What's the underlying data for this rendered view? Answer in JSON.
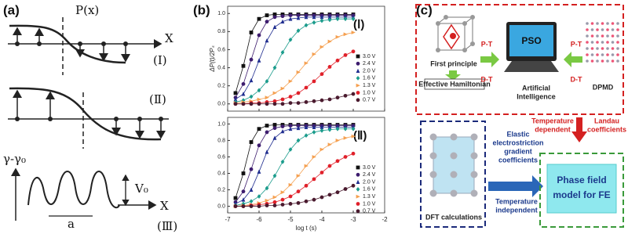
{
  "panel_a": {
    "label": "(a)",
    "px_label": "P(x)",
    "x_axis_1": "X",
    "row_1": "(Ⅰ)",
    "row_2": "(Ⅱ)",
    "gamma_label": "γ-γ₀",
    "v0_label": "V₀",
    "period_label": "a",
    "x_axis_3": "X",
    "row_3": "(Ⅲ)"
  },
  "panel_b": {
    "label": "(b)"
  },
  "chart_data": [
    {
      "type": "scatter",
      "annotation": "(Ⅰ)",
      "ylabel": "ΔP(t)/2Pₛ",
      "show_x_tick_labels": false,
      "x": [
        -6.75,
        -6.5,
        -6.25,
        -6.0,
        -5.75,
        -5.5,
        -5.25,
        -5.0,
        -4.75,
        -4.5,
        -4.25,
        -4.0,
        -3.75,
        -3.5,
        -3.25,
        -3.0
      ],
      "xlim": [
        -7,
        -2
      ],
      "xticks": [
        -7,
        -6,
        -5,
        -4,
        -3,
        -2
      ],
      "ylim": [
        -0.08,
        1.08
      ],
      "yticks": [
        {
          "value": 0,
          "label": "0.0"
        },
        0.2,
        0.4,
        0.6,
        0.8,
        {
          "value": 1,
          "label": "1.0"
        }
      ],
      "series": [
        {
          "name": "3.0 V",
          "color": "#111111",
          "marker": "square",
          "values": [
            0.12,
            0.42,
            0.79,
            0.94,
            0.98,
            0.99,
            0.99,
            0.99,
            0.99,
            0.99,
            0.99,
            0.99,
            0.99,
            0.99,
            0.99,
            0.99
          ]
        },
        {
          "name": "2.4 V",
          "color": "#3d1c6e",
          "marker": "circle",
          "values": [
            0.07,
            0.22,
            0.49,
            0.76,
            0.91,
            0.96,
            0.97,
            0.98,
            0.98,
            0.98,
            0.98,
            0.98,
            0.98,
            0.98,
            0.98,
            0.98
          ]
        },
        {
          "name": "2.0 V",
          "color": "#1f2d8f",
          "marker": "triangle",
          "values": [
            0.05,
            0.11,
            0.26,
            0.48,
            0.7,
            0.85,
            0.91,
            0.94,
            0.95,
            0.96,
            0.96,
            0.96,
            0.96,
            0.96,
            0.96,
            0.96
          ]
        },
        {
          "name": "1.6 V",
          "color": "#1b9c8c",
          "marker": "diamond",
          "values": [
            0.02,
            0.04,
            0.08,
            0.15,
            0.25,
            0.4,
            0.57,
            0.71,
            0.81,
            0.87,
            0.9,
            0.92,
            0.93,
            0.94,
            0.94,
            0.94
          ]
        },
        {
          "name": "1.3 V",
          "color": "#f5a050",
          "marker": "triangle-right",
          "values": [
            0.01,
            0.02,
            0.03,
            0.05,
            0.07,
            0.12,
            0.17,
            0.25,
            0.35,
            0.45,
            0.55,
            0.63,
            0.69,
            0.74,
            0.77,
            0.79
          ]
        },
        {
          "name": "1.0 V",
          "color": "#e0202a",
          "marker": "circle",
          "values": [
            0,
            0,
            0.01,
            0.01,
            0.02,
            0.03,
            0.05,
            0.08,
            0.12,
            0.18,
            0.25,
            0.33,
            0.41,
            0.48,
            0.54,
            0.58
          ]
        },
        {
          "name": "0.7 V",
          "color": "#4a1a2e",
          "marker": "circle",
          "values": [
            0,
            0,
            0,
            0,
            0,
            0,
            0,
            0.01,
            0.01,
            0.02,
            0.03,
            0.04,
            0.05,
            0.07,
            0.09,
            0.11
          ]
        }
      ]
    },
    {
      "type": "scatter",
      "annotation": "(Ⅱ)",
      "xlabel": "log t (s)",
      "show_x_tick_labels": true,
      "x": [
        -6.75,
        -6.5,
        -6.25,
        -6.0,
        -5.75,
        -5.5,
        -5.25,
        -5.0,
        -4.75,
        -4.5,
        -4.25,
        -4.0,
        -3.75,
        -3.5,
        -3.25,
        -3.0
      ],
      "xlim": [
        -7,
        -2
      ],
      "xticks": [
        -7,
        -6,
        -5,
        -4,
        -3,
        -2
      ],
      "ylim": [
        -0.08,
        1.08
      ],
      "yticks": [
        {
          "value": 0,
          "label": "0.0"
        },
        0.2,
        0.4,
        0.6,
        0.8,
        {
          "value": 1,
          "label": "1.0"
        }
      ],
      "series": [
        {
          "name": "3.0 V",
          "color": "#111111",
          "marker": "square",
          "values": [
            0.1,
            0.4,
            0.78,
            0.94,
            0.98,
            0.99,
            0.99,
            0.99,
            0.99,
            0.99,
            0.99,
            0.99,
            0.99,
            0.99,
            0.99,
            0.99
          ]
        },
        {
          "name": "2.4 V",
          "color": "#3d1c6e",
          "marker": "circle",
          "values": [
            0.05,
            0.18,
            0.45,
            0.74,
            0.9,
            0.95,
            0.97,
            0.98,
            0.98,
            0.98,
            0.98,
            0.98,
            0.98,
            0.98,
            0.98,
            0.98
          ]
        },
        {
          "name": "2.0 V",
          "color": "#1f2d8f",
          "marker": "triangle",
          "values": [
            0.03,
            0.08,
            0.2,
            0.42,
            0.66,
            0.83,
            0.91,
            0.94,
            0.95,
            0.96,
            0.96,
            0.96,
            0.96,
            0.96,
            0.96,
            0.96
          ]
        },
        {
          "name": "1.6 V",
          "color": "#1b9c8c",
          "marker": "diamond",
          "values": [
            0.01,
            0.03,
            0.06,
            0.12,
            0.22,
            0.37,
            0.54,
            0.69,
            0.8,
            0.86,
            0.9,
            0.92,
            0.93,
            0.94,
            0.94,
            0.94
          ]
        },
        {
          "name": "1.3 V",
          "color": "#f5a050",
          "marker": "triangle-right",
          "values": [
            0,
            0.01,
            0.02,
            0.04,
            0.07,
            0.11,
            0.17,
            0.26,
            0.37,
            0.49,
            0.6,
            0.69,
            0.75,
            0.8,
            0.83,
            0.85
          ]
        },
        {
          "name": "1.0 V",
          "color": "#e0202a",
          "marker": "circle",
          "values": [
            0,
            0,
            0.01,
            0.02,
            0.03,
            0.05,
            0.08,
            0.12,
            0.18,
            0.25,
            0.33,
            0.41,
            0.49,
            0.55,
            0.6,
            0.64
          ]
        },
        {
          "name": "0.7 V",
          "color": "#4a1a2e",
          "marker": "circle",
          "values": [
            0,
            0,
            0,
            0,
            0.01,
            0.01,
            0.02,
            0.03,
            0.04,
            0.06,
            0.08,
            0.11,
            0.14,
            0.17,
            0.21,
            0.25
          ]
        }
      ]
    }
  ],
  "panel_c": {
    "label": "(c)",
    "first_principle": "First principle",
    "effective_hamiltonian": "Effective Hamiltonian",
    "pt_left": "P-T",
    "dt_left": "D-T",
    "pso": "PSO",
    "artificial_intelligence": [
      "Artificial",
      "Intelligence"
    ],
    "pt_right": "P-T",
    "dt_right": "D-T",
    "dpmd": "DPMD",
    "temperature_dependent": [
      "Temperature",
      "dependent"
    ],
    "landau_coefficients": [
      "Landau",
      "coefficients"
    ],
    "elastic_coefficients": [
      "Elastic",
      "electrostriction",
      "gradient",
      "coefficients"
    ],
    "temperature_independent": [
      "Temperature",
      "independent"
    ],
    "dft_calculations": "DFT calculations",
    "phase_field": [
      "Phase field",
      "model for FE"
    ]
  }
}
